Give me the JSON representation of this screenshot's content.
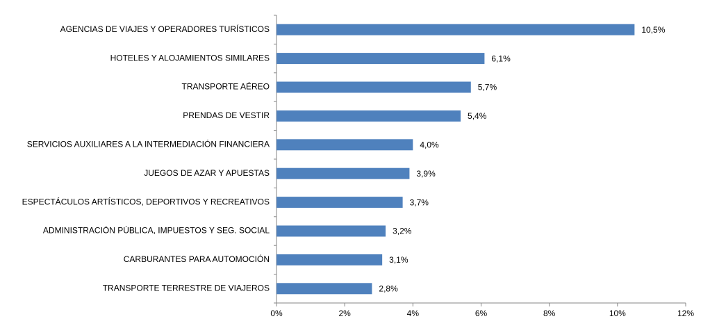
{
  "chart_data": {
    "type": "hbar",
    "categories": [
      "AGENCIAS DE VIAJES Y OPERADORES TURÍSTICOS",
      "HOTELES  Y ALOJAMIENTOS SIMILARES",
      "TRANSPORTE AÉREO",
      "PRENDAS DE VESTIR",
      "SERVICIOS AUXILIARES A LA INTERMEDIACIÓN FINANCIERA",
      "JUEGOS DE AZAR Y APUESTAS",
      "ESPECTÁCULOS ARTÍSTICOS, DEPORTIVOS Y RECREATIVOS",
      "ADMINISTRACIÓN PÚBLICA, IMPUESTOS Y SEG. SOCIAL",
      "CARBURANTES PARA AUTOMOCIÓN",
      "TRANSPORTE TERRESTRE DE VIAJEROS"
    ],
    "values": [
      10.5,
      6.1,
      5.7,
      5.4,
      4.0,
      3.9,
      3.7,
      3.2,
      3.1,
      2.8
    ],
    "value_labels": [
      "10,5%",
      "6,1%",
      "5,7%",
      "5,4%",
      "4,0%",
      "3,9%",
      "3,7%",
      "3,2%",
      "3,1%",
      "2,8%"
    ],
    "color": "#4f81bd",
    "xlim": [
      0,
      12
    ],
    "xticks": [
      {
        "value": 0,
        "label": "0%"
      },
      {
        "value": 2,
        "label": "2%"
      },
      {
        "value": 4,
        "label": "4%"
      },
      {
        "value": 6,
        "label": "6%"
      },
      {
        "value": 8,
        "label": "8%"
      },
      {
        "value": 10,
        "label": "10%"
      },
      {
        "value": 12,
        "label": "12%"
      }
    ],
    "grid": false
  }
}
